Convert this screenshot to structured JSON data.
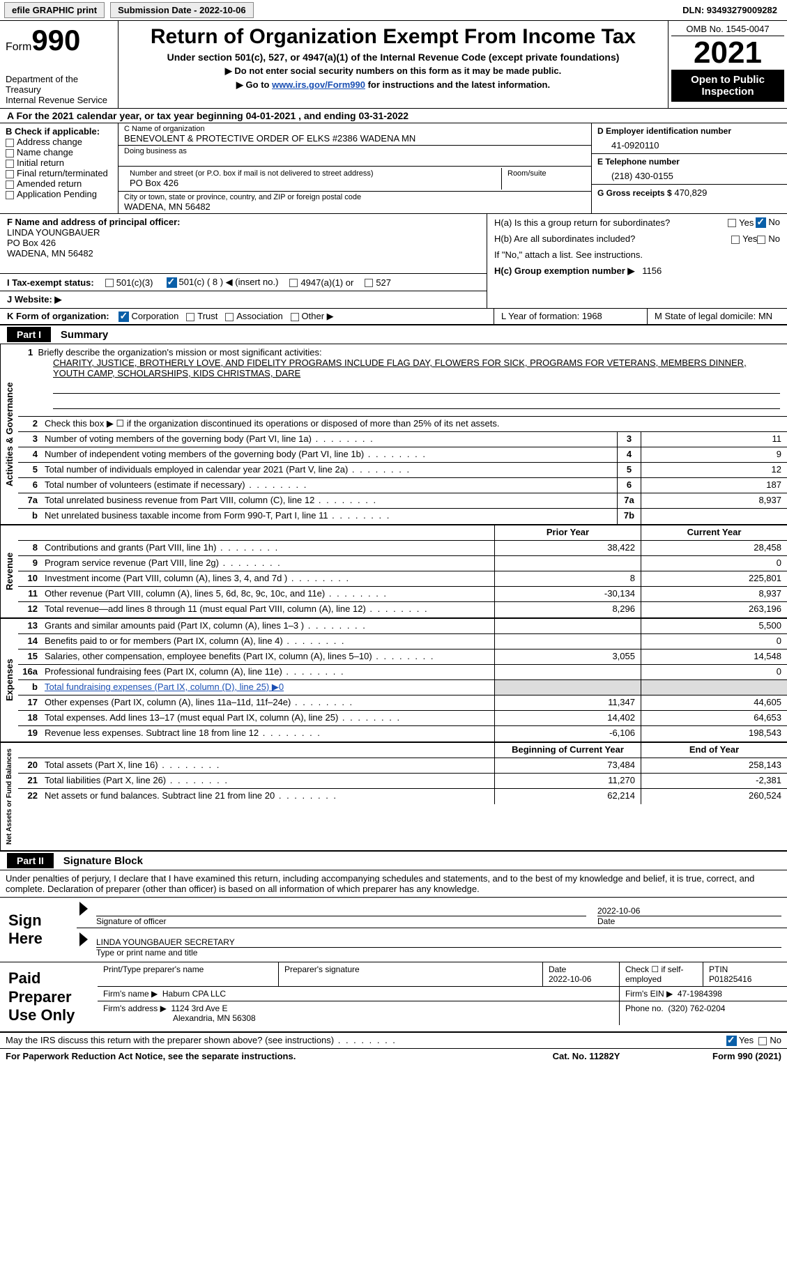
{
  "meta": {
    "efile_label": "efile GRAPHIC print",
    "submission": "Submission Date - 2022-10-06",
    "dln": "DLN: 93493279009282",
    "omb": "OMB No. 1545-0047",
    "form_prefix": "Form",
    "form_no": "990",
    "title": "Return of Organization Exempt From Income Tax",
    "subtitle": "Under section 501(c), 527, or 4947(a)(1) of the Internal Revenue Code (except private foundations)",
    "no_ssn": "▶ Do not enter social security numbers on this form as it may be made public.",
    "goto_prefix": "▶ Go to ",
    "goto_link": "www.irs.gov/Form990",
    "goto_suffix": " for instructions and the latest information.",
    "dept": "Department of the Treasury",
    "irs": "Internal Revenue Service",
    "year": "2021",
    "open": "Open to Public Inspection"
  },
  "A": {
    "text": "A For the 2021 calendar year, or tax year beginning 04-01-2021   , and ending 03-31-2022"
  },
  "B": {
    "header": "B Check if applicable:",
    "items": [
      "Address change",
      "Name change",
      "Initial return",
      "Final return/terminated",
      "Amended return",
      "Application Pending"
    ]
  },
  "C": {
    "name_lbl": "C Name of organization",
    "name": "BENEVOLENT & PROTECTIVE ORDER OF ELKS #2386 WADENA MN",
    "dba_lbl": "Doing business as",
    "dba": "",
    "street_lbl": "Number and street (or P.O. box if mail is not delivered to street address)",
    "street": "PO Box 426",
    "room_lbl": "Room/suite",
    "room": "",
    "city_lbl": "City or town, state or province, country, and ZIP or foreign postal code",
    "city": "WADENA, MN  56482"
  },
  "D": {
    "ein_lbl": "D Employer identification number",
    "ein": "41-0920110",
    "phone_lbl": "E Telephone number",
    "phone": "(218) 430-0155",
    "gross_lbl": "G Gross receipts $",
    "gross": "470,829"
  },
  "F": {
    "lbl": "F  Name and address of principal officer:",
    "name": "LINDA YOUNGBAUER",
    "street": "PO Box 426",
    "city": "WADENA, MN  56482"
  },
  "H": {
    "a_lbl": "H(a)  Is this a group return for subordinates?",
    "b_lbl": "H(b)  Are all subordinates included?",
    "note": "If \"No,\" attach a list. See instructions.",
    "c_lbl": "H(c)  Group exemption number ▶",
    "c_val": "1156"
  },
  "I": {
    "lbl": "I  Tax-exempt status:",
    "opts": [
      "501(c)(3)",
      "501(c) ( 8 ) ◀ (insert no.)",
      "4947(a)(1) or",
      "527"
    ]
  },
  "J": {
    "lbl": "J  Website: ▶"
  },
  "K": {
    "lbl": "K Form of organization:",
    "opts": [
      "Corporation",
      "Trust",
      "Association",
      "Other ▶"
    ],
    "L": "L Year of formation: 1968",
    "M": "M State of legal domicile: MN"
  },
  "part1": {
    "tag": "Part I",
    "title": "Summary",
    "q1_lbl": "Briefly describe the organization's mission or most significant activities:",
    "q1_text": "CHARITY, JUSTICE, BROTHERLY LOVE, AND FIDELITY PROGRAMS INCLUDE FLAG DAY, FLOWERS FOR SICK, PROGRAMS FOR VETERANS, MEMBERS DINNER, YOUTH CAMP, SCHOLARSHIPS, KIDS CHRISTMAS, DARE",
    "q2": "Check this box ▶ ☐ if the organization discontinued its operations or disposed of more than 25% of its net assets.",
    "rows_simple": [
      {
        "n": "3",
        "label": "Number of voting members of the governing body (Part VI, line 1a)",
        "box": "3",
        "val": "11"
      },
      {
        "n": "4",
        "label": "Number of independent voting members of the governing body (Part VI, line 1b)",
        "box": "4",
        "val": "9"
      },
      {
        "n": "5",
        "label": "Total number of individuals employed in calendar year 2021 (Part V, line 2a)",
        "box": "5",
        "val": "12"
      },
      {
        "n": "6",
        "label": "Total number of volunteers (estimate if necessary)",
        "box": "6",
        "val": "187"
      },
      {
        "n": "7a",
        "label": "Total unrelated business revenue from Part VIII, column (C), line 12",
        "box": "7a",
        "val": "8,937"
      },
      {
        "n": "b",
        "label": "Net unrelated business taxable income from Form 990-T, Part I, line 11",
        "box": "7b",
        "val": ""
      }
    ],
    "col_hdr_a": "Prior Year",
    "col_hdr_b": "Current Year",
    "rev_rows": [
      {
        "n": "8",
        "label": "Contributions and grants (Part VIII, line 1h)",
        "a": "38,422",
        "b": "28,458"
      },
      {
        "n": "9",
        "label": "Program service revenue (Part VIII, line 2g)",
        "a": "",
        "b": "0"
      },
      {
        "n": "10",
        "label": "Investment income (Part VIII, column (A), lines 3, 4, and 7d )",
        "a": "8",
        "b": "225,801"
      },
      {
        "n": "11",
        "label": "Other revenue (Part VIII, column (A), lines 5, 6d, 8c, 9c, 10c, and 11e)",
        "a": "-30,134",
        "b": "8,937"
      },
      {
        "n": "12",
        "label": "Total revenue—add lines 8 through 11 (must equal Part VIII, column (A), line 12)",
        "a": "8,296",
        "b": "263,196"
      }
    ],
    "exp_rows": [
      {
        "n": "13",
        "label": "Grants and similar amounts paid (Part IX, column (A), lines 1–3 )",
        "a": "",
        "b": "5,500"
      },
      {
        "n": "14",
        "label": "Benefits paid to or for members (Part IX, column (A), line 4)",
        "a": "",
        "b": "0"
      },
      {
        "n": "15",
        "label": "Salaries, other compensation, employee benefits (Part IX, column (A), lines 5–10)",
        "a": "3,055",
        "b": "14,548"
      },
      {
        "n": "16a",
        "label": "Professional fundraising fees (Part IX, column (A), line 11e)",
        "a": "",
        "b": "0"
      },
      {
        "n": "b",
        "label": "Total fundraising expenses (Part IX, column (D), line 25) ▶0",
        "shaded": true
      },
      {
        "n": "17",
        "label": "Other expenses (Part IX, column (A), lines 11a–11d, 11f–24e)",
        "a": "11,347",
        "b": "44,605"
      },
      {
        "n": "18",
        "label": "Total expenses. Add lines 13–17 (must equal Part IX, column (A), line 25)",
        "a": "14,402",
        "b": "64,653"
      },
      {
        "n": "19",
        "label": "Revenue less expenses. Subtract line 18 from line 12",
        "a": "-6,106",
        "b": "198,543"
      }
    ],
    "net_hdr_a": "Beginning of Current Year",
    "net_hdr_b": "End of Year",
    "net_rows": [
      {
        "n": "20",
        "label": "Total assets (Part X, line 16)",
        "a": "73,484",
        "b": "258,143"
      },
      {
        "n": "21",
        "label": "Total liabilities (Part X, line 26)",
        "a": "11,270",
        "b": "-2,381"
      },
      {
        "n": "22",
        "label": "Net assets or fund balances. Subtract line 21 from line 20",
        "a": "62,214",
        "b": "260,524"
      }
    ],
    "vtab1": "Activities & Governance",
    "vtab2": "Revenue",
    "vtab3": "Expenses",
    "vtab4": "Net Assets or Fund Balances"
  },
  "part2": {
    "tag": "Part II",
    "title": "Signature Block",
    "decl": "Under penalties of perjury, I declare that I have examined this return, including accompanying schedules and statements, and to the best of my knowledge and belief, it is true, correct, and complete. Declaration of preparer (other than officer) is based on all information of which preparer has any knowledge."
  },
  "sign": {
    "header": "Sign Here",
    "date": "2022-10-06",
    "sig_lbl": "Signature of officer",
    "date_lbl": "Date",
    "name": "LINDA YOUNGBAUER  SECRETARY",
    "name_lbl": "Type or print name and title"
  },
  "prep": {
    "header": "Paid Preparer Use Only",
    "print_lbl": "Print/Type preparer's name",
    "sig_lbl": "Preparer's signature",
    "date_lbl": "Date",
    "date": "2022-10-06",
    "check_lbl": "Check ☐ if self-employed",
    "ptin_lbl": "PTIN",
    "ptin": "P01825416",
    "firm_name_lbl": "Firm's name    ▶",
    "firm_name": "Haburn CPA LLC",
    "firm_ein_lbl": "Firm's EIN ▶",
    "firm_ein": "47-1984398",
    "firm_addr_lbl": "Firm's address ▶",
    "firm_addr": "1124 3rd Ave E",
    "firm_city": "Alexandria, MN  56308",
    "phone_lbl": "Phone no.",
    "phone": "(320) 762-0204"
  },
  "footer": {
    "discuss": "May the IRS discuss this return with the preparer shown above? (see instructions)",
    "paperwork": "For Paperwork Reduction Act Notice, see the separate instructions.",
    "cat": "Cat. No. 11282Y",
    "formref": "Form 990 (2021)"
  }
}
